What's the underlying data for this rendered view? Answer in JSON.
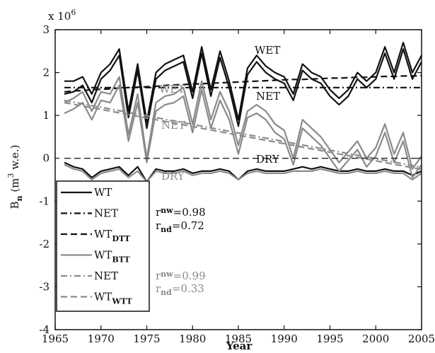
{
  "chart_data": {
    "type": "line",
    "xlabel": "Year",
    "ylabel_main": "B",
    "ylabel_sub": "n",
    "ylabel_rest": " (m",
    "ylabel_sup": "3",
    "ylabel_tail": " w.e.)",
    "y_multiplier_base": "x 10",
    "y_multiplier_exp": "6",
    "xlim": [
      1965,
      2005
    ],
    "ylim": [
      -4,
      3
    ],
    "xticks": [
      "1965",
      "1970",
      "1975",
      "1980",
      "1985",
      "1990",
      "1995",
      "2000",
      "2005"
    ],
    "yticks": [
      "-4",
      "-3",
      "-2",
      "-1",
      "0",
      "1",
      "2",
      "3"
    ],
    "annotations": {
      "wet_black": "WET",
      "net_black": "NET",
      "dry_black": "DRY",
      "wet_gray": "WET",
      "net_gray": "NET",
      "dry_gray": "DRY"
    },
    "stats_black": {
      "r1_main": "r",
      "r1_sub": "nw",
      "r1_val": "=0.98",
      "r2_main": "r",
      "r2_sub": "nd",
      "r2_val": "=0.72"
    },
    "stats_gray": {
      "r1_main": "r",
      "r1_sub": "nw",
      "r1_val": "=0.99",
      "r2_main": "r",
      "r2_sub": "nd",
      "r2_val": "=0.33"
    },
    "legend": [
      {
        "label": "WT",
        "sub": "",
        "color": "#111111",
        "dash": "solid"
      },
      {
        "label": "NET",
        "sub": "",
        "color": "#111111",
        "dash": "dashdot"
      },
      {
        "label": "WT",
        "sub": "DTT",
        "color": "#111111",
        "dash": "dashed"
      },
      {
        "label": "WT",
        "sub": "BTT",
        "color": "#8a8a8a",
        "dash": "solid"
      },
      {
        "label": "NET",
        "sub": "",
        "color": "#8a8a8a",
        "dash": "dashdot"
      },
      {
        "label": "WT",
        "sub": "WTT",
        "color": "#8a8a8a",
        "dash": "dashed"
      }
    ],
    "x": [
      1966,
      1967,
      1968,
      1969,
      1970,
      1971,
      1972,
      1973,
      1974,
      1975,
      1976,
      1977,
      1978,
      1979,
      1980,
      1981,
      1982,
      1983,
      1984,
      1985,
      1986,
      1987,
      1988,
      1989,
      1990,
      1991,
      1992,
      1993,
      1994,
      1995,
      1996,
      1997,
      1998,
      1999,
      2000,
      2001,
      2002,
      2003,
      2004,
      2005
    ],
    "series": [
      {
        "id": "black_wet",
        "color": "#111111",
        "dash": "solid",
        "values": [
          1.8,
          1.8,
          1.9,
          1.5,
          2.0,
          2.2,
          2.55,
          1.1,
          2.2,
          0.85,
          2.0,
          2.2,
          2.3,
          2.4,
          1.55,
          2.6,
          1.6,
          2.5,
          1.8,
          0.9,
          2.1,
          2.4,
          2.15,
          2.0,
          1.9,
          1.5,
          2.2,
          2.0,
          1.9,
          1.6,
          1.4,
          1.6,
          2.0,
          1.8,
          2.0,
          2.6,
          2.0,
          2.7,
          2.0,
          2.4
        ]
      },
      {
        "id": "black_net",
        "color": "#111111",
        "dash": "solid",
        "values": [
          1.5,
          1.55,
          1.7,
          1.3,
          1.85,
          2.05,
          2.4,
          0.95,
          2.05,
          0.7,
          1.85,
          2.05,
          2.15,
          2.25,
          1.4,
          2.45,
          1.45,
          2.35,
          1.65,
          0.75,
          1.95,
          2.25,
          2.0,
          1.85,
          1.75,
          1.35,
          2.05,
          1.85,
          1.75,
          1.45,
          1.25,
          1.45,
          1.85,
          1.65,
          1.85,
          2.45,
          1.85,
          2.55,
          1.85,
          2.25
        ]
      },
      {
        "id": "black_dry",
        "color": "#111111",
        "dash": "solid",
        "values": [
          -0.1,
          -0.2,
          -0.25,
          -0.45,
          -0.3,
          -0.25,
          -0.2,
          -0.4,
          -0.2,
          -0.55,
          -0.25,
          -0.3,
          -0.3,
          -0.25,
          -0.35,
          -0.3,
          -0.3,
          -0.25,
          -0.3,
          -0.5,
          -0.3,
          -0.25,
          -0.3,
          -0.3,
          -0.3,
          -0.25,
          -0.2,
          -0.25,
          -0.2,
          -0.25,
          -0.3,
          -0.3,
          -0.25,
          -0.3,
          -0.3,
          -0.25,
          -0.3,
          -0.3,
          -0.4,
          -0.3
        ]
      },
      {
        "id": "black_net_trend",
        "color": "#111111",
        "dash": "dashdot",
        "values": [
          1.65,
          1.65,
          1.65,
          1.65,
          1.65,
          1.65,
          1.65,
          1.65,
          1.65,
          1.65,
          1.65,
          1.65,
          1.65,
          1.65,
          1.65,
          1.65,
          1.65,
          1.65,
          1.65,
          1.65,
          1.65,
          1.65,
          1.65,
          1.65,
          1.65,
          1.65,
          1.65,
          1.65,
          1.65,
          1.65,
          1.65,
          1.65,
          1.65,
          1.65,
          1.65,
          1.65,
          1.65,
          1.65,
          1.65,
          1.65
        ]
      },
      {
        "id": "black_wt_dtt",
        "color": "#111111",
        "dash": "dashed",
        "values": [
          1.55,
          1.57,
          1.58,
          1.6,
          1.61,
          1.62,
          1.64,
          1.65,
          1.66,
          1.67,
          1.68,
          1.7,
          1.71,
          1.72,
          1.73,
          1.74,
          1.75,
          1.76,
          1.77,
          1.78,
          1.79,
          1.8,
          1.81,
          1.82,
          1.83,
          1.84,
          1.84,
          1.85,
          1.86,
          1.87,
          1.87,
          1.88,
          1.89,
          1.89,
          1.9,
          1.91,
          1.91,
          1.92,
          1.92,
          1.93
        ]
      },
      {
        "id": "gray_wet",
        "color": "#8a8a8a",
        "dash": "solid",
        "values": [
          1.3,
          1.4,
          1.55,
          1.1,
          1.55,
          1.5,
          1.9,
          0.55,
          1.5,
          0.0,
          1.3,
          1.45,
          1.5,
          1.65,
          0.8,
          1.8,
          0.9,
          1.55,
          1.1,
          0.3,
          1.1,
          1.25,
          1.1,
          0.8,
          0.65,
          0.0,
          0.9,
          0.7,
          0.5,
          0.2,
          -0.1,
          0.15,
          0.4,
          0.0,
          0.25,
          0.8,
          0.1,
          0.6,
          -0.25,
          0.05
        ]
      },
      {
        "id": "gray_net",
        "color": "#8a8a8a",
        "dash": "solid",
        "values": [
          1.05,
          1.15,
          1.3,
          0.9,
          1.35,
          1.3,
          1.7,
          0.4,
          1.3,
          -0.1,
          1.1,
          1.25,
          1.3,
          1.45,
          0.6,
          1.6,
          0.7,
          1.35,
          0.9,
          0.1,
          0.95,
          1.05,
          0.9,
          0.6,
          0.45,
          -0.15,
          0.7,
          0.5,
          0.3,
          0.0,
          -0.3,
          -0.05,
          0.2,
          -0.2,
          0.05,
          0.6,
          -0.1,
          0.4,
          -0.45,
          -0.15
        ]
      },
      {
        "id": "gray_dry",
        "color": "#8a8a8a",
        "dash": "solid",
        "values": [
          -0.15,
          -0.25,
          -0.3,
          -0.5,
          -0.35,
          -0.3,
          -0.25,
          -0.45,
          -0.3,
          -0.55,
          -0.3,
          -0.35,
          -0.35,
          -0.3,
          -0.4,
          -0.35,
          -0.35,
          -0.3,
          -0.35,
          -0.5,
          -0.35,
          -0.3,
          -0.35,
          -0.35,
          -0.35,
          -0.3,
          -0.3,
          -0.3,
          -0.25,
          -0.3,
          -0.35,
          -0.35,
          -0.3,
          -0.35,
          -0.35,
          -0.3,
          -0.35,
          -0.35,
          -0.5,
          -0.35
        ]
      },
      {
        "id": "gray_net_trend",
        "color": "#8a8a8a",
        "dash": "dashdot",
        "values": [
          1.35,
          1.31,
          1.27,
          1.23,
          1.19,
          1.15,
          1.11,
          1.07,
          1.03,
          0.99,
          0.95,
          0.91,
          0.87,
          0.83,
          0.79,
          0.75,
          0.71,
          0.67,
          0.63,
          0.59,
          0.55,
          0.51,
          0.47,
          0.43,
          0.39,
          0.35,
          0.31,
          0.27,
          0.23,
          0.19,
          0.15,
          0.11,
          0.07,
          0.03,
          -0.01,
          -0.05,
          -0.09,
          -0.13,
          -0.17,
          -0.21
        ]
      },
      {
        "id": "gray_wt_wtt",
        "color": "#8a8a8a",
        "dash": "dashed",
        "values": [
          1.3,
          1.26,
          1.22,
          1.18,
          1.14,
          1.1,
          1.06,
          1.02,
          0.98,
          0.94,
          0.9,
          0.86,
          0.82,
          0.78,
          0.74,
          0.7,
          0.66,
          0.62,
          0.58,
          0.54,
          0.5,
          0.46,
          0.42,
          0.38,
          0.34,
          0.3,
          0.26,
          0.22,
          0.18,
          0.14,
          0.1,
          0.06,
          0.02,
          -0.02,
          -0.06,
          -0.1,
          -0.14,
          -0.18,
          -0.22,
          -0.26
        ]
      },
      {
        "id": "zero_line",
        "color": "#333333",
        "dash": "dashed",
        "values": [
          0,
          0,
          0,
          0,
          0,
          0,
          0,
          0,
          0,
          0,
          0,
          0,
          0,
          0,
          0,
          0,
          0,
          0,
          0,
          0,
          0,
          0,
          0,
          0,
          0,
          0,
          0,
          0,
          0,
          0,
          0,
          0,
          0,
          0,
          0,
          0,
          0,
          0,
          0,
          0
        ]
      }
    ]
  }
}
